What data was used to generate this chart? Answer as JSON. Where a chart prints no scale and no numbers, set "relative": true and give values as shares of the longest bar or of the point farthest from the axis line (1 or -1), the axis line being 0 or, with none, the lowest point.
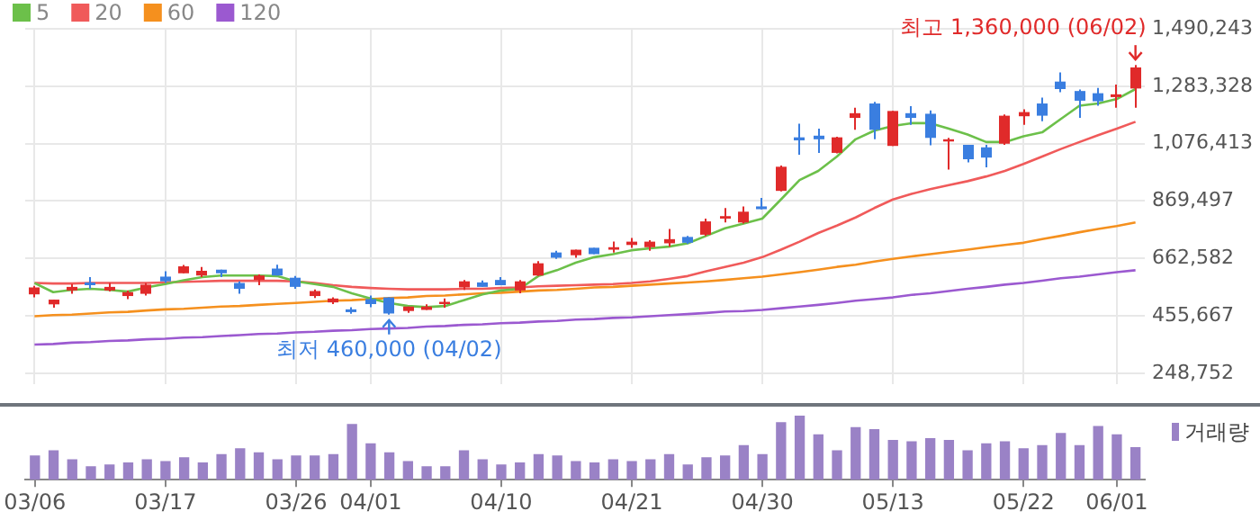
{
  "chart_data": [
    {
      "type": "candlestick",
      "categories": [
        null,
        null,
        null,
        null,
        null,
        null,
        null,
        null,
        null,
        null,
        null,
        null,
        null,
        null,
        null,
        null,
        null,
        null,
        null,
        null,
        null,
        null,
        null,
        null,
        null,
        null,
        null,
        null,
        null,
        null,
        null,
        null,
        null,
        null,
        null,
        null,
        null,
        null,
        null,
        null,
        null,
        null,
        null,
        null,
        null,
        null,
        null,
        null,
        null,
        null,
        null,
        null,
        null,
        null,
        null,
        null,
        null,
        null,
        null,
        null
      ],
      "ohlc": [
        [
          533000,
          564000,
          522000,
          558000
        ],
        [
          497000,
          514000,
          485000,
          514000
        ],
        [
          547000,
          570000,
          535000,
          560000
        ],
        [
          576000,
          595000,
          553000,
          566000
        ],
        [
          547000,
          574000,
          543000,
          560000
        ],
        [
          527000,
          547000,
          516000,
          541000
        ],
        [
          535000,
          574000,
          529000,
          568000
        ],
        [
          597000,
          616000,
          574000,
          580000
        ],
        [
          609000,
          639000,
          609000,
          634000
        ],
        [
          601000,
          632000,
          595000,
          618000
        ],
        [
          622000,
          622000,
          595000,
          609000
        ],
        [
          574000,
          580000,
          535000,
          553000
        ],
        [
          585000,
          605000,
          566000,
          601000
        ],
        [
          626000,
          640000,
          601000,
          601000
        ],
        [
          593000,
          599000,
          553000,
          560000
        ],
        [
          527000,
          551000,
          520000,
          545000
        ],
        [
          504000,
          522000,
          498000,
          518000
        ],
        [
          479000,
          487000,
          463000,
          469000
        ],
        [
          516000,
          529000,
          487000,
          498000
        ],
        [
          522000,
          522000,
          460000,
          464000
        ],
        [
          473000,
          489000,
          466000,
          489000
        ],
        [
          477000,
          497000,
          477000,
          489000
        ],
        [
          498000,
          518000,
          485000,
          506000
        ],
        [
          558000,
          585000,
          549000,
          580000
        ],
        [
          576000,
          583000,
          560000,
          560000
        ],
        [
          585000,
          595000,
          566000,
          566000
        ],
        [
          547000,
          585000,
          537000,
          580000
        ],
        [
          601000,
          653000,
          599000,
          645000
        ],
        [
          684000,
          690000,
          661000,
          665000
        ],
        [
          674000,
          694000,
          665000,
          694000
        ],
        [
          701000,
          701000,
          678000,
          678000
        ],
        [
          694000,
          723000,
          684000,
          703000
        ],
        [
          711000,
          736000,
          701000,
          723000
        ],
        [
          703000,
          728000,
          690000,
          723000
        ],
        [
          717000,
          769000,
          705000,
          732000
        ],
        [
          740000,
          744000,
          715000,
          719000
        ],
        [
          748000,
          806000,
          744000,
          796000
        ],
        [
          806000,
          844000,
          792000,
          815000
        ],
        [
          792000,
          850000,
          788000,
          831000
        ],
        [
          850000,
          881000,
          839000,
          840000
        ],
        [
          906000,
          997000,
          904000,
          993000
        ],
        [
          1099000,
          1148000,
          1036000,
          1088000
        ],
        [
          1105000,
          1130000,
          1043000,
          1092000
        ],
        [
          1043000,
          1101000,
          1041000,
          1099000
        ],
        [
          1169000,
          1206000,
          1126000,
          1186000
        ],
        [
          1221000,
          1227000,
          1092000,
          1126000
        ],
        [
          1068000,
          1194000,
          1068000,
          1194000
        ],
        [
          1186000,
          1211000,
          1144000,
          1169000
        ],
        [
          1184000,
          1196000,
          1070000,
          1097000
        ],
        [
          1084000,
          1097000,
          983000,
          1092000
        ],
        [
          1072000,
          1072000,
          1009000,
          1020000
        ],
        [
          1063000,
          1072000,
          991000,
          1026000
        ],
        [
          1076000,
          1181000,
          1072000,
          1177000
        ],
        [
          1175000,
          1200000,
          1144000,
          1190000
        ],
        [
          1221000,
          1242000,
          1157000,
          1177000
        ],
        [
          1300000,
          1333000,
          1262000,
          1273000
        ],
        [
          1266000,
          1271000,
          1169000,
          1231000
        ],
        [
          1258000,
          1277000,
          1213000,
          1229000
        ],
        [
          1244000,
          1289000,
          1206000,
          1254000
        ],
        [
          1275000,
          1360000,
          1206000,
          1351000
        ]
      ],
      "colors": [
        "#e02a2a",
        "#e02a2a",
        "#e02a2a",
        "#3a7ee0",
        "#e02a2a",
        "#e02a2a",
        "#e02a2a",
        "#3a7ee0",
        "#e02a2a",
        "#e02a2a",
        "#3a7ee0",
        "#3a7ee0",
        "#e02a2a",
        "#3a7ee0",
        "#3a7ee0",
        "#e02a2a",
        "#e02a2a",
        "#3a7ee0",
        "#3a7ee0",
        "#3a7ee0",
        "#e02a2a",
        "#e02a2a",
        "#e02a2a",
        "#e02a2a",
        "#3a7ee0",
        "#3a7ee0",
        "#e02a2a",
        "#e02a2a",
        "#3a7ee0",
        "#e02a2a",
        "#3a7ee0",
        "#e02a2a",
        "#e02a2a",
        "#e02a2a",
        "#e02a2a",
        "#3a7ee0",
        "#e02a2a",
        "#e02a2a",
        "#e02a2a",
        "#3a7ee0",
        "#e02a2a",
        "#3a7ee0",
        "#3a7ee0",
        "#e02a2a",
        "#e02a2a",
        "#3a7ee0",
        "#e02a2a",
        "#3a7ee0",
        "#3a7ee0",
        "#e02a2a",
        "#3a7ee0",
        "#3a7ee0",
        "#e02a2a",
        "#e02a2a",
        "#3a7ee0",
        "#3a7ee0",
        "#3a7ee0",
        "#3a7ee0",
        "#e02a2a",
        "#e02a2a"
      ],
      "series": [
        {
          "name": "5",
          "type": "line",
          "color": "#6cc04a",
          "values": [
            574000,
            541000,
            549000,
            553000,
            549000,
            543000,
            558000,
            570000,
            584000,
            595000,
            601000,
            601000,
            601000,
            599000,
            580000,
            570000,
            560000,
            537000,
            518000,
            502000,
            491000,
            487000,
            491000,
            512000,
            533000,
            547000,
            553000,
            599000,
            620000,
            647000,
            667000,
            678000,
            692000,
            699000,
            705000,
            717000,
            744000,
            771000,
            788000,
            806000,
            875000,
            945000,
            978000,
            1030000,
            1092000,
            1123000,
            1140000,
            1150000,
            1150000,
            1130000,
            1109000,
            1082000,
            1082000,
            1103000,
            1117000,
            1165000,
            1213000,
            1221000,
            1237000,
            1273000
          ]
        },
        {
          "name": "20",
          "type": "line",
          "color": "#f05a5a",
          "values": [
            574000,
            572000,
            572000,
            574000,
            574000,
            574000,
            574000,
            576000,
            578000,
            580000,
            582000,
            582000,
            582000,
            582000,
            580000,
            574000,
            566000,
            560000,
            556000,
            553000,
            551000,
            551000,
            551000,
            553000,
            553000,
            556000,
            558000,
            562000,
            564000,
            566000,
            568000,
            570000,
            574000,
            580000,
            589000,
            599000,
            616000,
            632000,
            647000,
            667000,
            694000,
            723000,
            754000,
            781000,
            810000,
            844000,
            875000,
            895000,
            912000,
            927000,
            941000,
            958000,
            978000,
            1003000,
            1030000,
            1057000,
            1082000,
            1107000,
            1130000,
            1155000
          ]
        },
        {
          "name": "60",
          "type": "line",
          "color": "#f5901e",
          "values": [
            454000,
            458000,
            460000,
            464000,
            468000,
            470000,
            475000,
            479000,
            481000,
            485000,
            489000,
            491000,
            495000,
            499000,
            502000,
            506000,
            510000,
            512000,
            516000,
            520000,
            522000,
            527000,
            529000,
            533000,
            537000,
            539000,
            543000,
            547000,
            549000,
            553000,
            558000,
            560000,
            564000,
            568000,
            572000,
            576000,
            580000,
            585000,
            591000,
            597000,
            605000,
            613000,
            622000,
            632000,
            640000,
            651000,
            661000,
            670000,
            678000,
            686000,
            694000,
            703000,
            711000,
            719000,
            732000,
            744000,
            757000,
            769000,
            779000,
            792000
          ]
        },
        {
          "name": "120",
          "type": "line",
          "color": "#9b59d0",
          "values": [
            352000,
            354000,
            359000,
            361000,
            365000,
            367000,
            371000,
            373000,
            377000,
            379000,
            383000,
            386000,
            390000,
            392000,
            396000,
            398000,
            402000,
            404000,
            408000,
            410000,
            412000,
            417000,
            419000,
            423000,
            425000,
            429000,
            431000,
            435000,
            437000,
            442000,
            444000,
            448000,
            450000,
            454000,
            458000,
            462000,
            466000,
            471000,
            473000,
            477000,
            483000,
            489000,
            495000,
            502000,
            510000,
            516000,
            522000,
            531000,
            537000,
            545000,
            553000,
            560000,
            568000,
            574000,
            582000,
            591000,
            597000,
            605000,
            613000,
            620000
          ]
        }
      ],
      "ylim": [
        210000,
        1490243
      ],
      "yticks": [
        {
          "value": 248752,
          "label": "248,752"
        },
        {
          "value": 455667,
          "label": "455,667"
        },
        {
          "value": 662582,
          "label": "662,582"
        },
        {
          "value": 869497,
          "label": "869,497"
        },
        {
          "value": 1076413,
          "label": "1,076,413"
        },
        {
          "value": 1283328,
          "label": "1,283,328"
        },
        {
          "value": 1490243,
          "label": "1,490,243"
        }
      ],
      "grid": true,
      "legend": "top left",
      "marker": "none",
      "tick_labels": "y",
      "annotations": [
        "최고 1,360,000 (06/02)",
        "최저 460,000 (04/02)"
      ]
    },
    {
      "type": "bar",
      "relative": true,
      "categories": [
        "03/06",
        null,
        null,
        null,
        null,
        null,
        null,
        "03/17",
        null,
        null,
        null,
        null,
        null,
        null,
        "03/26",
        null,
        null,
        null,
        "04/01",
        null,
        null,
        null,
        null,
        null,
        null,
        "04/10",
        null,
        null,
        null,
        null,
        null,
        null,
        "04/21",
        null,
        null,
        null,
        null,
        null,
        null,
        "04/30",
        null,
        null,
        null,
        null,
        null,
        null,
        "05/13",
        null,
        null,
        null,
        null,
        null,
        null,
        "05/22",
        null,
        null,
        null,
        null,
        "06/01",
        null
      ],
      "series": [
        {
          "name": "거래량",
          "color": "#9a82c6",
          "values": [
            0.37,
            0.45,
            0.31,
            0.2,
            0.23,
            0.26,
            0.31,
            0.28,
            0.34,
            0.26,
            0.39,
            0.48,
            0.42,
            0.31,
            0.37,
            0.37,
            0.39,
            0.86,
            0.56,
            0.42,
            0.28,
            0.2,
            0.2,
            0.45,
            0.31,
            0.23,
            0.26,
            0.39,
            0.37,
            0.28,
            0.26,
            0.31,
            0.28,
            0.31,
            0.39,
            0.23,
            0.34,
            0.37,
            0.53,
            0.39,
            0.89,
            1,
            0.7,
            0.45,
            0.81,
            0.78,
            0.61,
            0.59,
            0.64,
            0.61,
            0.45,
            0.56,
            0.59,
            0.48,
            0.53,
            0.72,
            0.53,
            0.83,
            0.7,
            0.5
          ]
        }
      ],
      "legend": "top right"
    }
  ]
}
